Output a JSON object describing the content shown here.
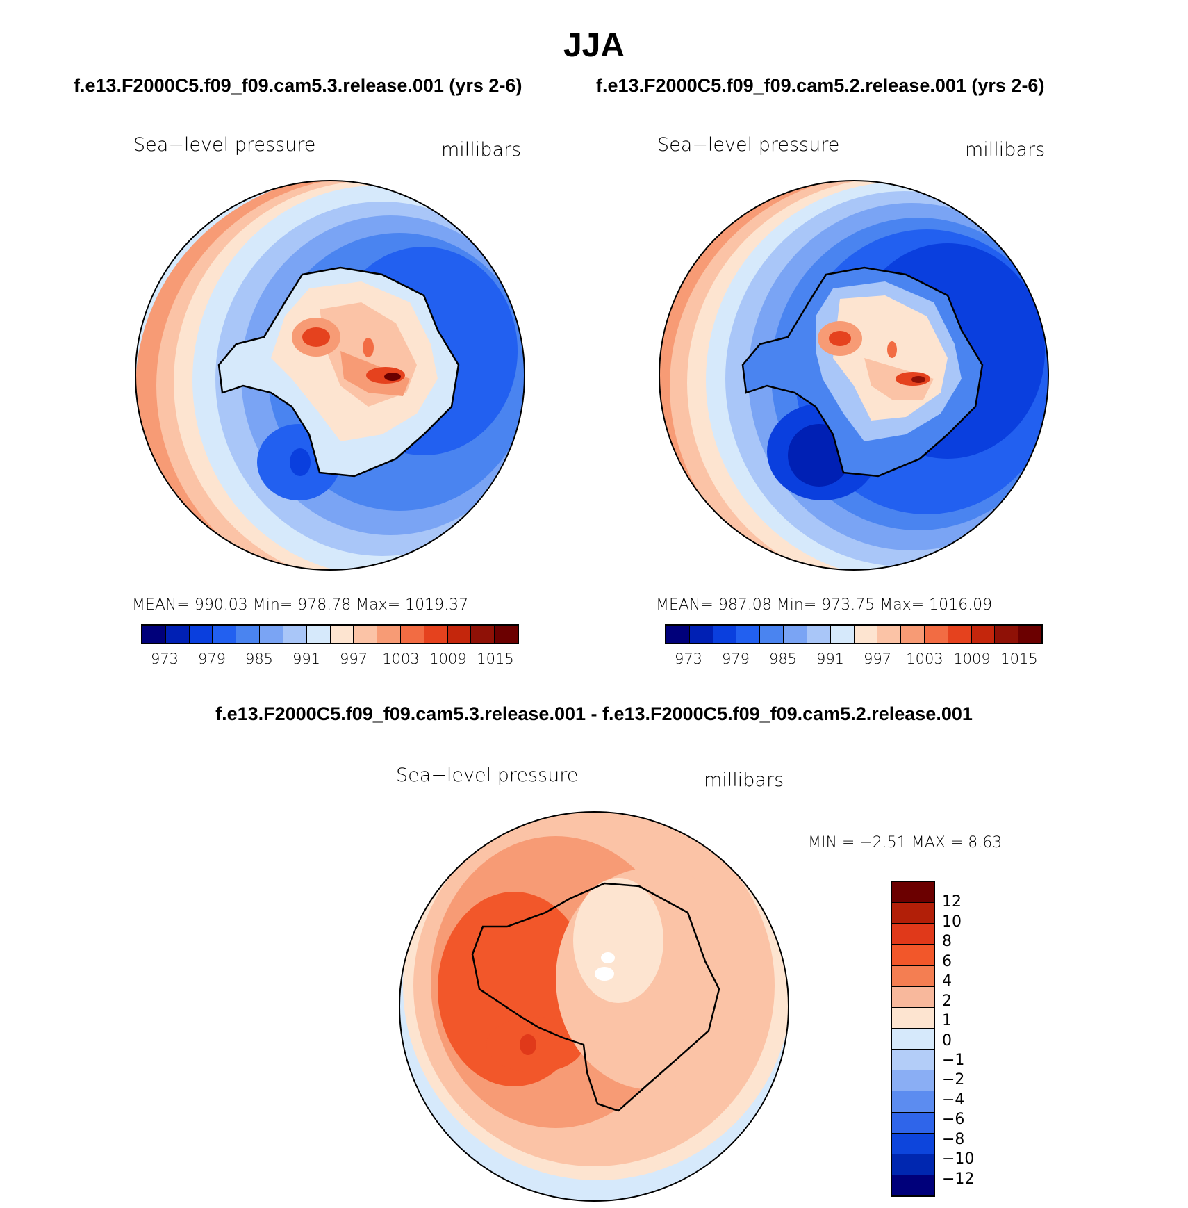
{
  "title": "JJA",
  "panels": [
    {
      "case": "f.e13.F2000C5.f09_f09.cam5.3.release.001 (yrs 2-6)",
      "variable": "Sea−level pressure",
      "units": "millibars",
      "stats": "MEAN= 990.03   Min= 978.78   Max= 1019.37",
      "colors": [
        "#00007a",
        "#0020b4",
        "#0a3fde",
        "#2260f0",
        "#4a84f0",
        "#7aa4f4",
        "#a9c6f8",
        "#d6e9fb",
        "#fde4d0",
        "#fbc3a6",
        "#f79b75",
        "#f26c43",
        "#e5421e",
        "#c4260c",
        "#8f1106",
        "#6b0000"
      ],
      "ticks": [
        "973",
        "979",
        "985",
        "991",
        "997",
        "1003",
        "1009",
        "1015"
      ]
    },
    {
      "case": "f.e13.F2000C5.f09_f09.cam5.2.release.001 (yrs 2-6)",
      "variable": "Sea−level pressure",
      "units": "millibars",
      "stats": "MEAN= 987.08   Min= 973.75   Max= 1016.09",
      "colors": [
        "#00007a",
        "#0020b4",
        "#0a3fde",
        "#2260f0",
        "#4a84f0",
        "#7aa4f4",
        "#a9c6f8",
        "#d6e9fb",
        "#fde4d0",
        "#fbc3a6",
        "#f79b75",
        "#f26c43",
        "#e5421e",
        "#c4260c",
        "#8f1106",
        "#6b0000"
      ],
      "ticks": [
        "973",
        "979",
        "985",
        "991",
        "997",
        "1003",
        "1009",
        "1015"
      ]
    }
  ],
  "difference": {
    "title": "f.e13.F2000C5.f09_f09.cam5.3.release.001 - f.e13.F2000C5.f09_f09.cam5.2.release.001",
    "variable": "Sea−level pressure",
    "units": "millibars",
    "minmax": "MIN =   −2.51  MAX =     8.63",
    "colors": [
      "#6b0000",
      "#b21f08",
      "#e0391a",
      "#f2572a",
      "#f47e52",
      "#f8b89c",
      "#fde4d0",
      "#d6e9fb",
      "#b3cdf8",
      "#8aaef4",
      "#5c8cf0",
      "#2f65ea",
      "#0d45dc",
      "#0027b0",
      "#00007a"
    ],
    "ticks": [
      "12",
      "10",
      "8",
      "6",
      "4",
      "2",
      "1",
      "0",
      "−1",
      "−2",
      "−4",
      "−6",
      "−8",
      "−10",
      "−12"
    ]
  }
}
